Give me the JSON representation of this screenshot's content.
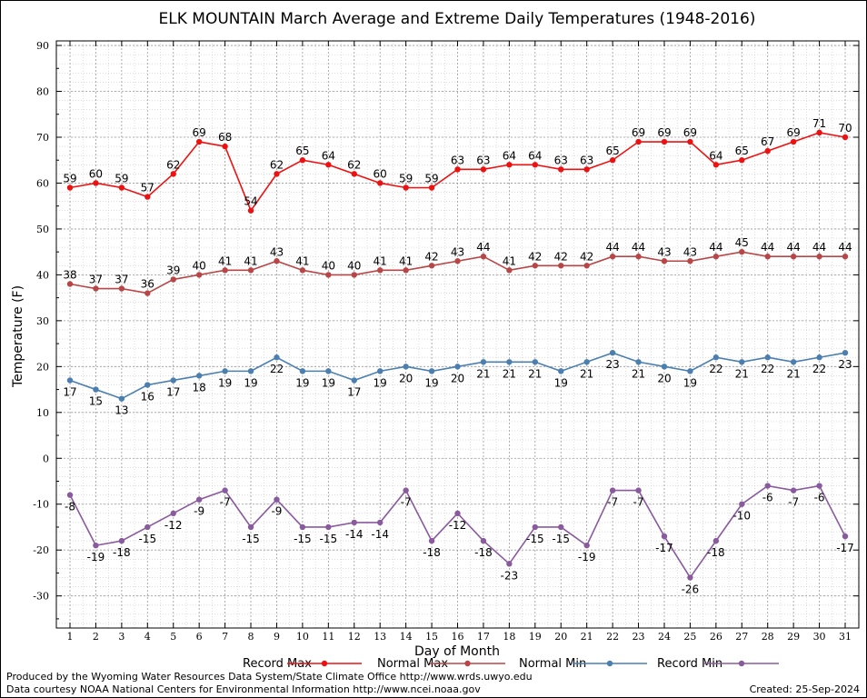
{
  "chart_data": {
    "type": "line",
    "title": "ELK MOUNTAIN March Average and Extreme Daily Temperatures (1948-2016)",
    "xlabel": "Day of Month",
    "ylabel": "Temperature (F)",
    "ylim": [
      -37,
      91
    ],
    "yticks": [
      90,
      80,
      70,
      60,
      50,
      40,
      30,
      20,
      10,
      0,
      -10,
      -20,
      -30
    ],
    "x": [
      1,
      2,
      3,
      4,
      5,
      6,
      7,
      8,
      9,
      10,
      11,
      12,
      13,
      14,
      15,
      16,
      17,
      18,
      19,
      20,
      21,
      22,
      23,
      24,
      25,
      26,
      27,
      28,
      29,
      30,
      31
    ],
    "grid": true,
    "legend_placement": "bottom",
    "series": [
      {
        "name": "Record Max",
        "color": "#ee1111",
        "values": [
          59,
          60,
          59,
          57,
          62,
          69,
          68,
          54,
          62,
          65,
          64,
          62,
          60,
          59,
          59,
          63,
          63,
          64,
          64,
          63,
          63,
          65,
          69,
          69,
          69,
          64,
          65,
          67,
          69,
          71,
          70
        ]
      },
      {
        "name": "Normal Max",
        "color": "#b94646",
        "values": [
          38,
          37,
          37,
          36,
          39,
          40,
          41,
          41,
          43,
          41,
          40,
          40,
          41,
          41,
          42,
          43,
          44,
          41,
          42,
          42,
          42,
          44,
          44,
          43,
          43,
          44,
          45,
          44,
          44,
          44,
          44
        ]
      },
      {
        "name": "Normal Min",
        "color": "#4a7fb0",
        "values": [
          17,
          15,
          13,
          16,
          17,
          18,
          19,
          19,
          22,
          19,
          19,
          17,
          19,
          20,
          19,
          20,
          21,
          21,
          21,
          19,
          21,
          23,
          21,
          20,
          19,
          22,
          21,
          22,
          21,
          22,
          23
        ]
      },
      {
        "name": "Record Min",
        "color": "#8a5a9e",
        "values": [
          -8,
          -19,
          -18,
          -15,
          -12,
          -9,
          -7,
          -15,
          -9,
          -15,
          -15,
          -14,
          -14,
          -7,
          -18,
          -12,
          -18,
          -23,
          -15,
          -15,
          -19,
          -7,
          -7,
          -17,
          -26,
          -18,
          -10,
          -6,
          -7,
          -6,
          -17
        ]
      }
    ]
  },
  "footer": {
    "line1": "Produced by the Wyoming Water Resources Data System/State Climate Office http://www.wrds.uwyo.edu",
    "line2": "Data courtesy NOAA National Centers for Environmental Information http://www.ncei.noaa.gov",
    "created": "Created:  25-Sep-2024"
  }
}
